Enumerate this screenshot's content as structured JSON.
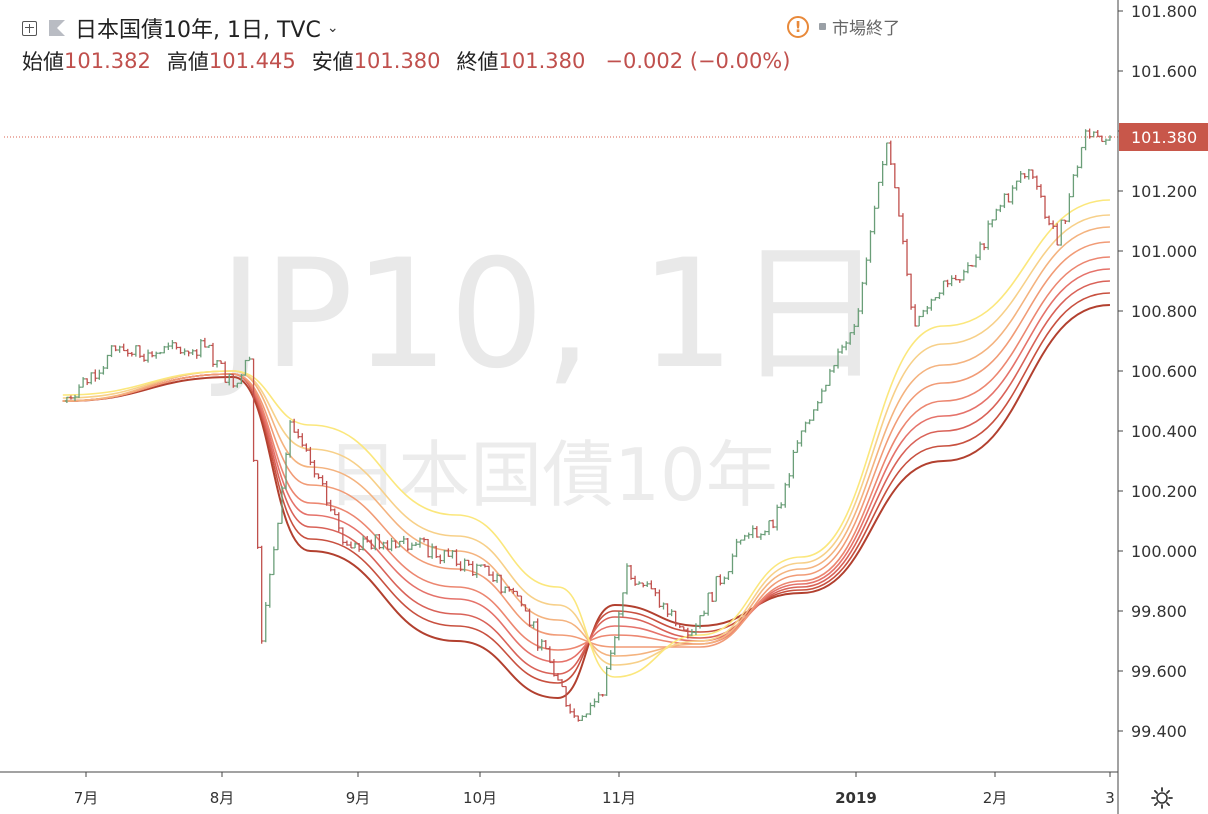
{
  "header": {
    "symbol_title": "日本国債10年, 1日, TVC",
    "labels": {
      "open": "始値",
      "high": "高値",
      "low": "安値",
      "close": "終値"
    },
    "values": {
      "open": "101.382",
      "high": "101.445",
      "low": "101.380",
      "close": "101.380"
    },
    "change": "−0.002 (−0.00%)",
    "market_status": "市場終了",
    "warning_symbol": "!"
  },
  "watermark": {
    "line1": "JP10, 1日",
    "line2": "日本国債10年"
  },
  "colors": {
    "up": "#6a9e78",
    "down": "#c0504d",
    "price_line": "#d9604f",
    "price_label_bg": "#c8574a",
    "ribbon": [
      "#fbe77c",
      "#f7d089",
      "#f4b37f",
      "#f19b76",
      "#ec8670",
      "#e5726a",
      "#d96258",
      "#c8503f",
      "#b2402f"
    ]
  },
  "chart_data": {
    "type": "line",
    "title": "日本国債10年",
    "timeframe": "1日",
    "source": "TVC",
    "y_axis": {
      "range": [
        99.35,
        101.85
      ],
      "ticks": [
        "101.800",
        "101.600",
        "101.400",
        "101.200",
        "101.000",
        "100.800",
        "100.600",
        "100.400",
        "100.200",
        "100.000",
        "99.800",
        "99.600",
        "99.400"
      ]
    },
    "x_axis": {
      "ticks": [
        "7月",
        "8月",
        "9月",
        "10月",
        "11月",
        "2019",
        "2月",
        "3"
      ],
      "bold_ticks": [
        "2019"
      ]
    },
    "last_price": {
      "value": 101.38,
      "label": "101.380"
    },
    "price_series": {
      "name": "",
      "x": [
        "2018-06-15",
        "2018-06-29",
        "2018-07-06",
        "2018-07-20",
        "2018-07-27",
        "2018-07-31",
        "2018-08-03",
        "2018-08-10",
        "2018-08-24",
        "2018-09-07",
        "2018-09-28",
        "2018-10-05",
        "2018-10-19",
        "2018-10-26",
        "2018-11-01",
        "2018-11-16",
        "2018-11-30",
        "2018-12-07",
        "2018-12-14",
        "2018-12-21",
        "2018-12-28",
        "2019-01-04",
        "2019-01-11",
        "2019-01-18",
        "2019-01-25",
        "2019-02-01",
        "2019-02-08",
        "2019-02-15",
        "2019-02-22",
        "2019-02-28"
      ],
      "close": [
        100.5,
        100.68,
        100.66,
        100.68,
        100.55,
        100.64,
        99.7,
        100.43,
        100.02,
        100.04,
        99.92,
        99.85,
        99.45,
        99.52,
        99.95,
        99.72,
        100.05,
        100.08,
        100.4,
        100.6,
        100.8,
        101.36,
        100.75,
        100.9,
        100.95,
        101.15,
        101.27,
        101.02,
        101.4,
        101.38
      ]
    },
    "ribbon_series": [
      {
        "name": "",
        "values": [
          100.52,
          100.6,
          100.42,
          100.12,
          99.88,
          99.58,
          99.72,
          99.98,
          100.75,
          101.17
        ]
      },
      {
        "name": "",
        "values": [
          100.51,
          100.6,
          100.34,
          100.05,
          99.82,
          99.62,
          99.7,
          99.96,
          100.69,
          101.12
        ]
      },
      {
        "name": "",
        "values": [
          100.5,
          100.6,
          100.28,
          100.0,
          99.77,
          99.65,
          99.69,
          99.94,
          100.62,
          101.08
        ]
      },
      {
        "name": "",
        "values": [
          100.5,
          100.59,
          100.22,
          99.94,
          99.72,
          99.68,
          99.68,
          99.92,
          100.56,
          101.03
        ]
      },
      {
        "name": "",
        "values": [
          100.5,
          100.59,
          100.16,
          99.88,
          99.67,
          99.72,
          99.69,
          99.9,
          100.5,
          100.98
        ]
      },
      {
        "name": "",
        "values": [
          100.5,
          100.59,
          100.12,
          99.84,
          99.63,
          99.75,
          99.7,
          99.89,
          100.45,
          100.94
        ]
      },
      {
        "name": "",
        "values": [
          100.5,
          100.59,
          100.08,
          99.79,
          99.59,
          99.78,
          99.71,
          99.88,
          100.4,
          100.9
        ]
      },
      {
        "name": "",
        "values": [
          100.5,
          100.59,
          100.04,
          99.75,
          99.56,
          99.8,
          99.73,
          99.87,
          100.35,
          100.86
        ]
      },
      {
        "name": "",
        "values": [
          100.5,
          100.58,
          100.0,
          99.7,
          99.51,
          99.82,
          99.75,
          99.86,
          100.3,
          100.82
        ]
      }
    ],
    "ribbon_x": [
      "2018-06-15",
      "2018-07-27",
      "2018-08-15",
      "2018-09-20",
      "2018-10-15",
      "2018-10-29",
      "2018-11-19",
      "2018-12-14",
      "2019-01-18",
      "2019-02-28"
    ],
    "grid": false,
    "legend": "none"
  }
}
